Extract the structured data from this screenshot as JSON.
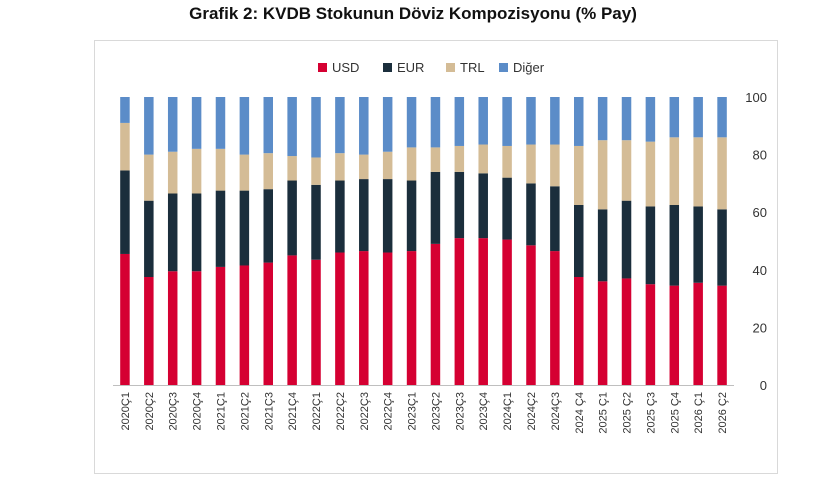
{
  "chart_data": {
    "type": "bar",
    "stacked": true,
    "title": "Grafik 2: KVDB Stokunun Döviz Kompozisyonu (% Pay)",
    "xlabel": "",
    "ylabel": "",
    "ylim": [
      0,
      100
    ],
    "yticks": [
      "0",
      "20",
      "40",
      "60",
      "80",
      "100"
    ],
    "y_axis_position": "right",
    "grid": false,
    "legend_position": "top",
    "categories": [
      "2020Ç1",
      "2020Ç2",
      "2020Ç3",
      "2020Ç4",
      "2021Ç1",
      "2021Ç2",
      "2021Ç3",
      "2021Ç4",
      "2022Ç1",
      "2022Ç2",
      "2022Ç3",
      "2022Ç4",
      "2023Ç1",
      "2023Ç2",
      "2023Ç3",
      "2023Ç4",
      "2024Ç1",
      "2024Ç2",
      "2024Ç3",
      "2024 Ç4",
      "2025 Ç1",
      "2025 Ç2",
      "2025 Ç3",
      "2025 Ç4",
      "2026 Ç1",
      "2026 Ç2"
    ],
    "series": [
      {
        "name": "USD",
        "color": "#d50032",
        "values": [
          45.5,
          37.5,
          39.5,
          39.5,
          41,
          41.5,
          42.5,
          45,
          43.5,
          46,
          46.5,
          46,
          46.5,
          49,
          51,
          51,
          50.5,
          48.5,
          46.5,
          37.5,
          36,
          37,
          35,
          34.5,
          35.5,
          34.5
        ]
      },
      {
        "name": "EUR",
        "color": "#1b2e3c",
        "values": [
          29,
          26.5,
          27,
          27,
          26.5,
          26,
          25.5,
          26,
          26,
          25,
          25,
          25.5,
          24.5,
          25,
          23,
          22.5,
          21.5,
          21.5,
          22.5,
          25,
          25,
          27,
          27,
          28,
          26.5,
          26.5
        ]
      },
      {
        "name": "TRL",
        "color": "#d4bc96",
        "values": [
          16.5,
          16,
          14.5,
          15.5,
          14.5,
          12.5,
          12.5,
          8.5,
          9.5,
          9.5,
          8.5,
          9.5,
          11.5,
          8.5,
          9,
          10,
          11,
          13.5,
          14.5,
          20.5,
          24,
          21,
          22.5,
          23.5,
          24,
          25
        ]
      },
      {
        "name": "Diğer",
        "color": "#5b8cc8",
        "values": [
          9,
          20,
          19,
          18,
          18,
          20,
          19.5,
          20.5,
          21,
          19.5,
          20,
          19,
          17.5,
          17.5,
          17,
          16.5,
          17,
          16.5,
          16.5,
          17,
          15,
          15,
          15.5,
          14,
          14,
          14
        ]
      }
    ]
  }
}
